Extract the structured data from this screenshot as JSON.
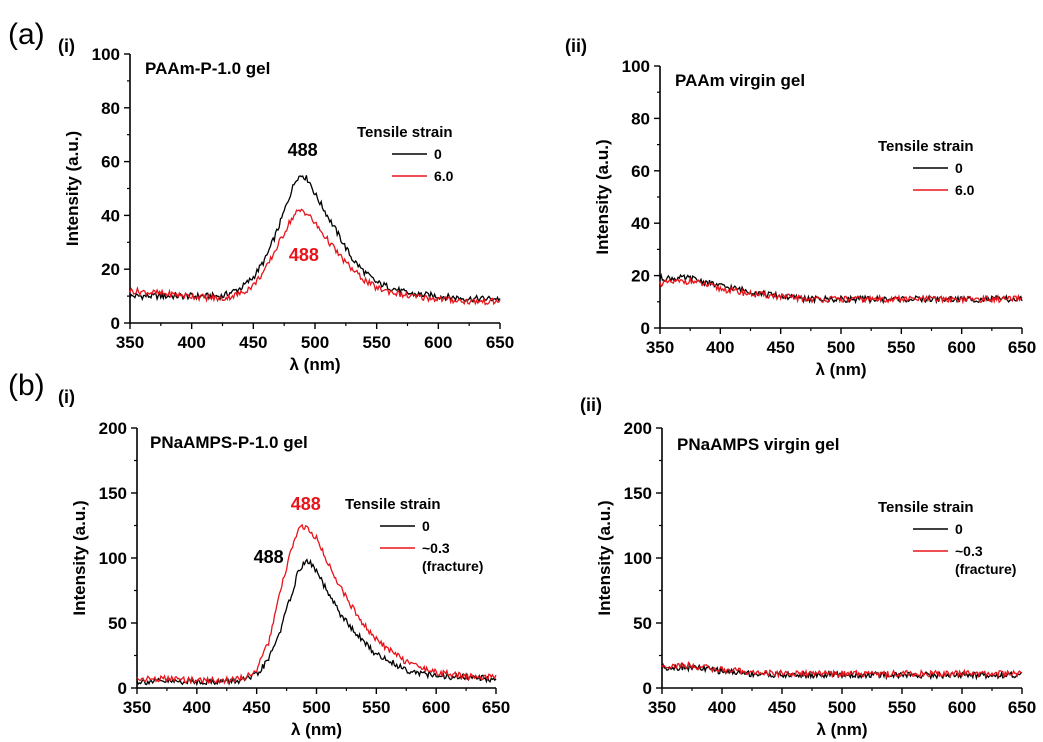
{
  "figure": {
    "panel_labels": [
      "(a)",
      "(b)"
    ],
    "sub_labels": [
      "(i)",
      "(ii)",
      "(i)",
      "(ii)"
    ]
  },
  "colors": {
    "strain0": "#000000",
    "strain1": "#e8141b"
  },
  "chart_data": [
    {
      "type": "line",
      "title": "PAAm-P-1.0 gel",
      "xlabel": "λ (nm)",
      "ylabel": "Intensity (a.u.)",
      "xlim": [
        350,
        650
      ],
      "ylim": [
        0,
        100
      ],
      "xticks": [
        350,
        400,
        450,
        500,
        550,
        600,
        650
      ],
      "yticks": [
        0,
        20,
        40,
        60,
        80,
        100
      ],
      "legend_title": "Tensile strain",
      "legend_position": "right",
      "grid": false,
      "series": [
        {
          "name": "0",
          "color": "#000000",
          "x": [
            350,
            375,
            400,
            425,
            440,
            450,
            460,
            470,
            480,
            485,
            490,
            495,
            500,
            510,
            520,
            530,
            540,
            550,
            575,
            600,
            625,
            650
          ],
          "y": [
            10,
            10,
            10,
            10,
            13,
            17,
            24,
            35,
            48,
            54,
            55,
            53,
            48,
            40,
            32,
            24,
            19,
            15,
            11,
            10,
            9,
            9
          ]
        },
        {
          "name": "6.0",
          "color": "#e8141b",
          "x": [
            350,
            375,
            400,
            425,
            440,
            450,
            460,
            470,
            480,
            485,
            490,
            495,
            500,
            510,
            520,
            530,
            540,
            550,
            575,
            600,
            625,
            650
          ],
          "y": [
            12,
            11,
            10,
            9,
            11,
            14,
            20,
            29,
            38,
            41,
            42,
            40,
            37,
            31,
            25,
            20,
            16,
            13,
            10,
            9,
            8,
            8
          ]
        }
      ],
      "annotations": [
        {
          "text": "488",
          "x": 490,
          "y": 62,
          "color": "#000000"
        },
        {
          "text": "488",
          "x": 491,
          "y": 23,
          "color": "#e8141b"
        }
      ]
    },
    {
      "type": "line",
      "title": "PAAm virgin gel",
      "xlabel": "λ (nm)",
      "ylabel": "Intensity (a.u.)",
      "xlim": [
        350,
        650
      ],
      "ylim": [
        0,
        100
      ],
      "xticks": [
        350,
        400,
        450,
        500,
        550,
        600,
        650
      ],
      "yticks": [
        0,
        20,
        40,
        60,
        80,
        100
      ],
      "legend_title": "Tensile strain",
      "legend_position": "right",
      "grid": false,
      "series": [
        {
          "name": "0",
          "color": "#000000",
          "x": [
            350,
            375,
            400,
            425,
            450,
            475,
            500,
            525,
            550,
            575,
            600,
            625,
            650
          ],
          "y": [
            19,
            19,
            16,
            14,
            12,
            11,
            11,
            11,
            11,
            11,
            11,
            11,
            11
          ]
        },
        {
          "name": "6.0",
          "color": "#e8141b",
          "x": [
            350,
            375,
            400,
            425,
            450,
            475,
            500,
            525,
            550,
            575,
            600,
            625,
            650
          ],
          "y": [
            17,
            18,
            15,
            13,
            12,
            11,
            11,
            11,
            11,
            11,
            11,
            11,
            11
          ]
        }
      ],
      "annotations": []
    },
    {
      "type": "line",
      "title": "PNaAMPS-P-1.0 gel",
      "xlabel": "λ (nm)",
      "ylabel": "Intensity (a.u.)",
      "xlim": [
        350,
        650
      ],
      "ylim": [
        0,
        200
      ],
      "xticks": [
        350,
        400,
        450,
        500,
        550,
        600,
        650
      ],
      "yticks": [
        0,
        50,
        100,
        150,
        200
      ],
      "legend_title": "Tensile strain",
      "legend_position": "right",
      "grid": false,
      "series": [
        {
          "name": "0",
          "color": "#000000",
          "x": [
            350,
            375,
            400,
            425,
            440,
            450,
            460,
            470,
            480,
            485,
            490,
            495,
            500,
            510,
            520,
            530,
            540,
            550,
            575,
            600,
            625,
            650
          ],
          "y": [
            5,
            5,
            5,
            5,
            6,
            10,
            22,
            45,
            75,
            90,
            97,
            96,
            90,
            72,
            57,
            45,
            35,
            26,
            14,
            9,
            8,
            7
          ]
        },
        {
          "name": "~0.3\n(fracture)",
          "color": "#e8141b",
          "x": [
            350,
            375,
            400,
            425,
            440,
            450,
            460,
            470,
            480,
            485,
            490,
            495,
            500,
            510,
            520,
            530,
            540,
            550,
            575,
            600,
            625,
            650
          ],
          "y": [
            7,
            7,
            6,
            6,
            8,
            14,
            35,
            75,
            110,
            122,
            124,
            121,
            115,
            95,
            78,
            62,
            48,
            37,
            20,
            12,
            9,
            8
          ]
        }
      ],
      "annotations": [
        {
          "text": "488",
          "x": 491,
          "y": 137,
          "color": "#e8141b"
        },
        {
          "text": "488",
          "x": 460,
          "y": 96,
          "color": "#000000"
        }
      ]
    },
    {
      "type": "line",
      "title": "PNaAMPS virgin gel",
      "xlabel": "λ (nm)",
      "ylabel": "Intensity (a.u.)",
      "xlim": [
        350,
        650
      ],
      "ylim": [
        0,
        200
      ],
      "xticks": [
        350,
        400,
        450,
        500,
        550,
        600,
        650
      ],
      "yticks": [
        0,
        50,
        100,
        150,
        200
      ],
      "legend_title": "Tensile strain",
      "legend_position": "right",
      "grid": false,
      "series": [
        {
          "name": "0",
          "color": "#000000",
          "x": [
            350,
            375,
            400,
            425,
            450,
            475,
            500,
            525,
            550,
            575,
            600,
            625,
            650
          ],
          "y": [
            16,
            16,
            13,
            11,
            10,
            10,
            10,
            10,
            10,
            10,
            10,
            10,
            10
          ]
        },
        {
          "name": "~0.3\n(fracture)",
          "color": "#e8141b",
          "x": [
            350,
            375,
            400,
            425,
            450,
            475,
            500,
            525,
            550,
            575,
            600,
            625,
            650
          ],
          "y": [
            17,
            17,
            14,
            12,
            11,
            11,
            11,
            11,
            11,
            11,
            11,
            11,
            11
          ]
        }
      ],
      "annotations": []
    }
  ]
}
